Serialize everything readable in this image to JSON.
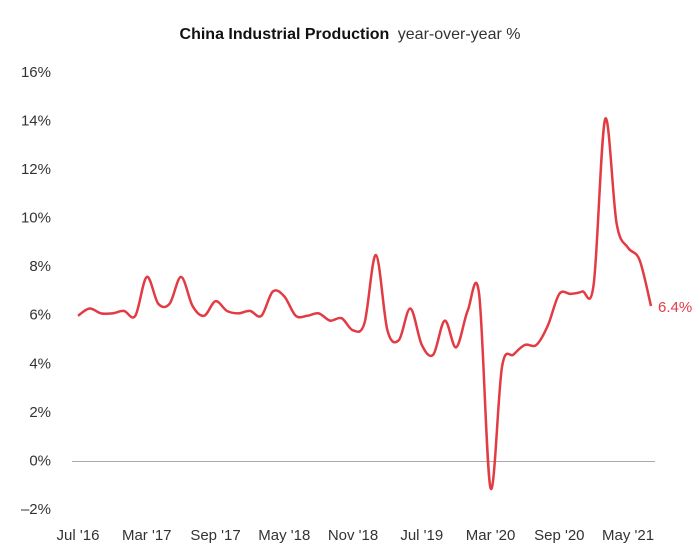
{
  "chart_data": {
    "type": "line",
    "title": "China Industrial Production",
    "subtitle": "year-over-year %",
    "categories": [
      "Jul '16",
      null,
      null,
      null,
      null,
      null,
      "Mar '17",
      null,
      null,
      null,
      null,
      null,
      "Sep '17",
      null,
      null,
      null,
      null,
      null,
      "May '18",
      null,
      null,
      null,
      null,
      null,
      "Nov '18",
      null,
      null,
      null,
      null,
      null,
      "Jul '19",
      null,
      null,
      null,
      null,
      null,
      "Mar '20",
      null,
      null,
      null,
      null,
      null,
      "Sep '20",
      null,
      null,
      null,
      null,
      null,
      "May '21",
      null,
      null
    ],
    "series": [
      {
        "name": "China Industrial Production",
        "color": "#e23b44",
        "values": [
          6.0,
          6.3,
          6.1,
          6.1,
          6.2,
          6.0,
          7.6,
          6.5,
          6.5,
          7.6,
          6.4,
          6.0,
          6.6,
          6.2,
          6.1,
          6.2,
          6.0,
          7.0,
          6.8,
          6.0,
          6.0,
          6.1,
          5.8,
          5.9,
          5.4,
          5.7,
          8.5,
          5.4,
          5.0,
          6.3,
          4.8,
          4.4,
          5.8,
          4.7,
          6.2,
          6.9,
          -1.1,
          3.9,
          4.4,
          4.8,
          4.8,
          5.6,
          6.9,
          6.9,
          7.0,
          7.3,
          14.1,
          9.8,
          8.8,
          8.3,
          6.4
        ],
        "value_labels": [
          null,
          null,
          null,
          null,
          null,
          null,
          null,
          null,
          null,
          null,
          null,
          null,
          null,
          null,
          null,
          null,
          null,
          null,
          null,
          null,
          null,
          null,
          null,
          null,
          null,
          null,
          null,
          null,
          null,
          null,
          null,
          null,
          null,
          null,
          null,
          null,
          null,
          null,
          null,
          null,
          null,
          null,
          null,
          null,
          null,
          null,
          null,
          null,
          null,
          null,
          "6.4%"
        ]
      }
    ],
    "ylim": [
      -2,
      16
    ],
    "yticks": [
      {
        "value": -2,
        "label": "–2%"
      },
      {
        "value": 0,
        "label": "0%"
      },
      {
        "value": 2,
        "label": "2%"
      },
      {
        "value": 4,
        "label": "4%"
      },
      {
        "value": 6,
        "label": "6%"
      },
      {
        "value": 8,
        "label": "8%"
      },
      {
        "value": 10,
        "label": "10%"
      },
      {
        "value": 12,
        "label": "12%"
      },
      {
        "value": 14,
        "label": "14%"
      },
      {
        "value": 16,
        "label": "16%"
      }
    ],
    "zero_line": true,
    "grid": false
  }
}
